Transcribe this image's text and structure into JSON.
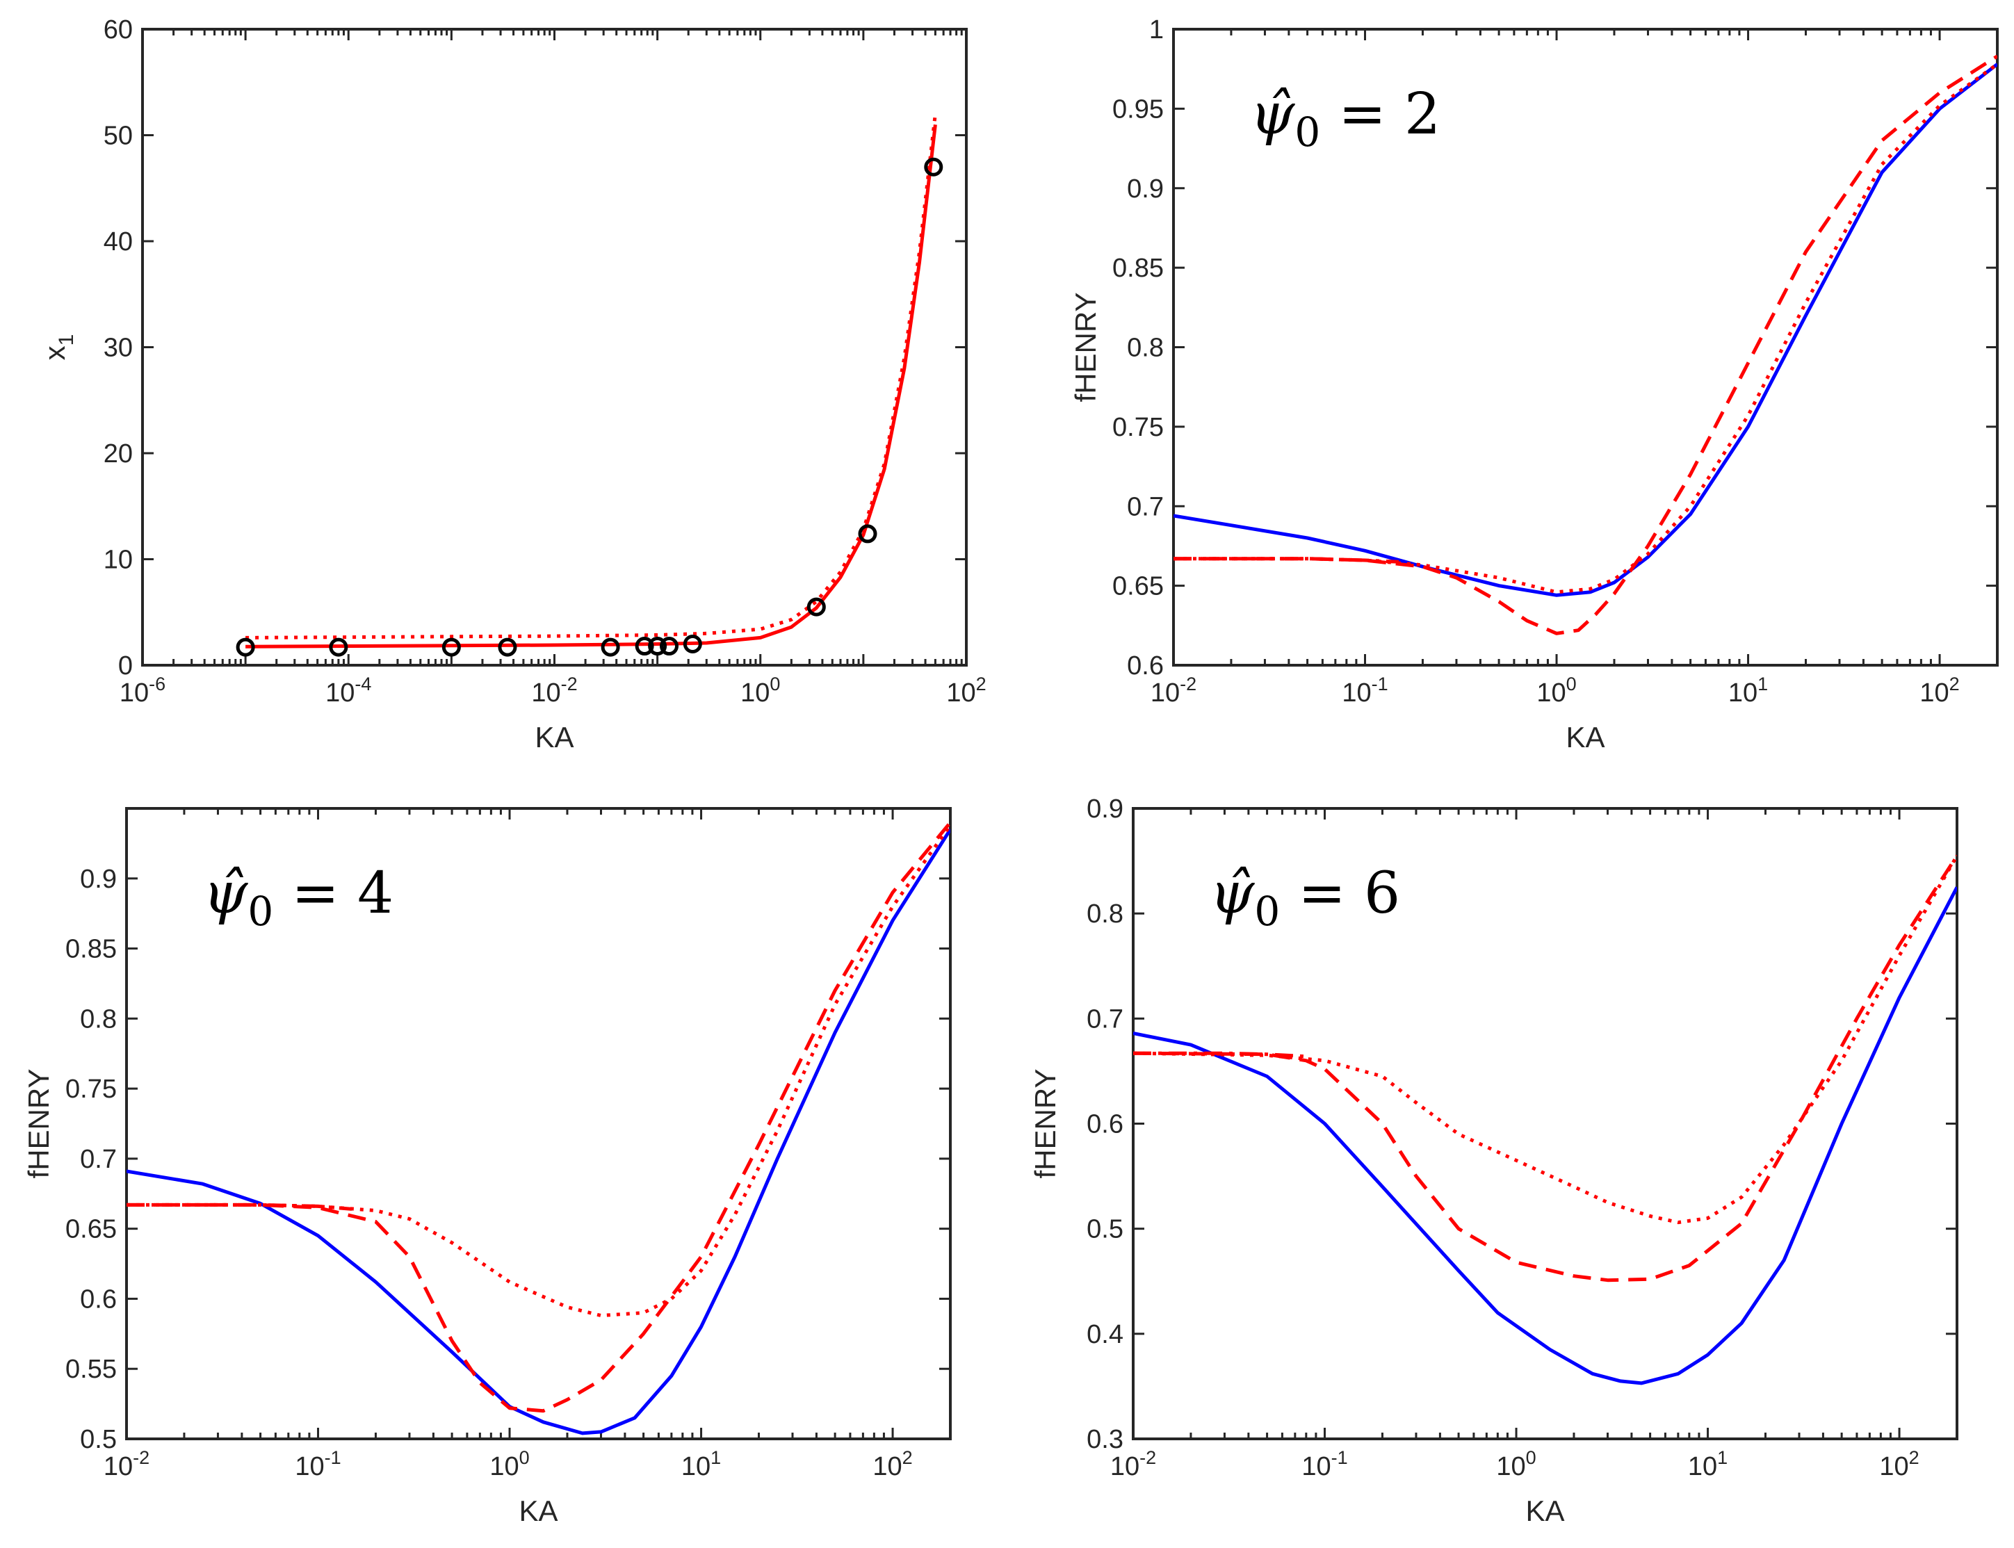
{
  "colors": {
    "blue": "#0000ff",
    "red": "#ff0000",
    "axis": "#262626",
    "marker": "#000000"
  },
  "chart_data": [
    {
      "type": "line",
      "xlabel": "KA",
      "ylabel": "x",
      "ylabel_sub": "1",
      "xscale": "log",
      "xlim": [
        1e-06,
        100
      ],
      "ylim": [
        0,
        60
      ],
      "yticks": [
        0,
        10,
        20,
        30,
        40,
        50,
        60
      ],
      "yticklabels": [
        "0",
        "10",
        "20",
        "30",
        "40",
        "50",
        "60"
      ],
      "xticks": [
        -6,
        -4,
        -2,
        0,
        2
      ],
      "xtick_base": "10",
      "xtick_exps": [
        "-6",
        "-4",
        "-2",
        "0",
        "2"
      ],
      "annotation": null,
      "series": [
        {
          "name": "solid",
          "color": "red",
          "style": "solid",
          "x": [
            1e-05,
            0.0001,
            0.001,
            0.01,
            0.1,
            0.3,
            1,
            2,
            3.5,
            6,
            10,
            16,
            25,
            35,
            50
          ],
          "y": [
            1.75,
            1.8,
            1.85,
            1.9,
            2.0,
            2.1,
            2.6,
            3.6,
            5.4,
            8.3,
            12.3,
            18.5,
            28,
            38,
            51
          ]
        },
        {
          "name": "dotted",
          "color": "red",
          "style": "dotted",
          "x": [
            1e-05,
            0.0001,
            0.001,
            0.01,
            0.1,
            0.3,
            1,
            2,
            3.5,
            6,
            10,
            16,
            25,
            35,
            50
          ],
          "y": [
            2.6,
            2.65,
            2.7,
            2.75,
            2.85,
            3.0,
            3.4,
            4.3,
            6.0,
            8.8,
            12.8,
            19,
            29,
            39,
            52
          ]
        },
        {
          "name": "markers",
          "color": "marker",
          "style": "marker",
          "x": [
            1e-05,
            8e-05,
            0.001,
            0.0035,
            0.035,
            0.075,
            0.1,
            0.13,
            0.22,
            3.5,
            11,
            48
          ],
          "y": [
            1.7,
            1.7,
            1.7,
            1.7,
            1.7,
            1.8,
            1.8,
            1.8,
            2.0,
            5.5,
            12.4,
            47
          ]
        }
      ]
    },
    {
      "type": "line",
      "xlabel": "KA",
      "ylabel": "fHENRY",
      "xscale": "log",
      "xlim": [
        0.01,
        200
      ],
      "ylim": [
        0.6,
        1.0
      ],
      "yticks": [
        0.6,
        0.65,
        0.7,
        0.75,
        0.8,
        0.85,
        0.9,
        0.95,
        1.0
      ],
      "yticklabels": [
        "0.6",
        "0.65",
        "0.7",
        "0.75",
        "0.8",
        "0.85",
        "0.9",
        "0.95",
        "1"
      ],
      "xticks": [
        -2,
        -1,
        0,
        1,
        2
      ],
      "xtick_base": "10",
      "xtick_exps": [
        "-2",
        "-1",
        "0",
        "1",
        "2"
      ],
      "annotation": {
        "prefix": "ψ̂",
        "sub": "0",
        "rest": " = 2"
      },
      "series": [
        {
          "name": "solid",
          "color": "blue",
          "style": "solid",
          "x": [
            0.01,
            0.02,
            0.05,
            0.1,
            0.2,
            0.5,
            1,
            1.5,
            2,
            3,
            5,
            10,
            20,
            50,
            100,
            200
          ],
          "y": [
            0.694,
            0.688,
            0.68,
            0.672,
            0.662,
            0.65,
            0.644,
            0.646,
            0.652,
            0.668,
            0.695,
            0.75,
            0.82,
            0.91,
            0.95,
            0.978
          ]
        },
        {
          "name": "dashed",
          "color": "red",
          "style": "dashed",
          "x": [
            0.01,
            0.05,
            0.1,
            0.2,
            0.3,
            0.5,
            0.7,
            1,
            1.3,
            1.6,
            2,
            3,
            5,
            10,
            20,
            50,
            100,
            200
          ],
          "y": [
            0.667,
            0.667,
            0.666,
            0.662,
            0.655,
            0.64,
            0.628,
            0.62,
            0.622,
            0.632,
            0.645,
            0.675,
            0.72,
            0.79,
            0.86,
            0.93,
            0.96,
            0.983
          ]
        },
        {
          "name": "dotted",
          "color": "red",
          "style": "dotted",
          "x": [
            0.01,
            0.05,
            0.1,
            0.2,
            0.5,
            1,
            1.5,
            2,
            3,
            5,
            10,
            20,
            50,
            100,
            200
          ],
          "y": [
            0.667,
            0.667,
            0.666,
            0.663,
            0.655,
            0.646,
            0.648,
            0.654,
            0.67,
            0.7,
            0.757,
            0.828,
            0.915,
            0.952,
            0.978
          ]
        },
        {
          "name": "dashdot",
          "color": "red",
          "style": "dashdot",
          "x": [
            0.01,
            0.03,
            0.05,
            0.1,
            0.15
          ],
          "y": [
            0.667,
            0.667,
            0.667,
            0.666,
            0.665
          ]
        }
      ]
    },
    {
      "type": "line",
      "xlabel": "KA",
      "ylabel": "fHENRY",
      "xscale": "log",
      "xlim": [
        0.01,
        200
      ],
      "ylim": [
        0.5,
        0.95
      ],
      "yticks": [
        0.5,
        0.55,
        0.6,
        0.65,
        0.7,
        0.75,
        0.8,
        0.85,
        0.9
      ],
      "yticklabels": [
        "0.5",
        "0.55",
        "0.6",
        "0.65",
        "0.7",
        "0.75",
        "0.8",
        "0.85",
        "0.9"
      ],
      "xticks": [
        -2,
        -1,
        0,
        1,
        2
      ],
      "xtick_base": "10",
      "xtick_exps": [
        "-2",
        "-1",
        "0",
        "1",
        "2"
      ],
      "annotation": {
        "prefix": "ψ̂",
        "sub": "0",
        "rest": " = 4"
      },
      "series": [
        {
          "name": "solid",
          "color": "blue",
          "style": "solid",
          "x": [
            0.01,
            0.025,
            0.05,
            0.1,
            0.2,
            0.5,
            1,
            1.5,
            2.4,
            3,
            4.5,
            7,
            10,
            15,
            25,
            50,
            100,
            200
          ],
          "y": [
            0.691,
            0.682,
            0.668,
            0.645,
            0.612,
            0.562,
            0.523,
            0.512,
            0.504,
            0.505,
            0.515,
            0.545,
            0.58,
            0.63,
            0.7,
            0.79,
            0.87,
            0.935
          ]
        },
        {
          "name": "dashed",
          "color": "red",
          "style": "dashed",
          "x": [
            0.01,
            0.05,
            0.1,
            0.2,
            0.3,
            0.5,
            0.7,
            1,
            1.5,
            2,
            3,
            5,
            10,
            20,
            50,
            100,
            200
          ],
          "y": [
            0.667,
            0.667,
            0.665,
            0.655,
            0.63,
            0.57,
            0.54,
            0.522,
            0.52,
            0.528,
            0.542,
            0.575,
            0.63,
            0.71,
            0.82,
            0.89,
            0.94
          ]
        },
        {
          "name": "dotted",
          "color": "red",
          "style": "dotted",
          "x": [
            0.01,
            0.05,
            0.1,
            0.2,
            0.3,
            0.5,
            1,
            2,
            3,
            5,
            7,
            10,
            15,
            25,
            50,
            100,
            200
          ],
          "y": [
            0.667,
            0.667,
            0.666,
            0.663,
            0.657,
            0.64,
            0.612,
            0.594,
            0.588,
            0.59,
            0.6,
            0.62,
            0.66,
            0.72,
            0.81,
            0.88,
            0.938
          ]
        },
        {
          "name": "dashdot",
          "color": "red",
          "style": "dashdot",
          "x": [
            0.01,
            0.03,
            0.05,
            0.1,
            0.15
          ],
          "y": [
            0.667,
            0.667,
            0.667,
            0.666,
            0.664
          ]
        }
      ]
    },
    {
      "type": "line",
      "xlabel": "KA",
      "ylabel": "fHENRY",
      "xscale": "log",
      "xlim": [
        0.01,
        200
      ],
      "ylim": [
        0.3,
        0.9
      ],
      "yticks": [
        0.3,
        0.4,
        0.5,
        0.6,
        0.7,
        0.8,
        0.9
      ],
      "yticklabels": [
        "0.3",
        "0.4",
        "0.5",
        "0.6",
        "0.7",
        "0.8",
        "0.9"
      ],
      "xticks": [
        -2,
        -1,
        0,
        1,
        2
      ],
      "xtick_base": "10",
      "xtick_exps": [
        "-2",
        "-1",
        "0",
        "1",
        "2"
      ],
      "annotation": {
        "prefix": "ψ̂",
        "sub": "0",
        "rest": " = 6"
      },
      "series": [
        {
          "name": "solid",
          "color": "blue",
          "style": "solid",
          "x": [
            0.01,
            0.02,
            0.05,
            0.1,
            0.2,
            0.5,
            0.8,
            1.5,
            2.5,
            3.5,
            4.5,
            7,
            10,
            15,
            25,
            50,
            100,
            200
          ],
          "y": [
            0.686,
            0.675,
            0.645,
            0.6,
            0.54,
            0.46,
            0.42,
            0.385,
            0.362,
            0.355,
            0.353,
            0.362,
            0.38,
            0.41,
            0.47,
            0.6,
            0.72,
            0.825
          ]
        },
        {
          "name": "dashed",
          "color": "red",
          "style": "dashed",
          "x": [
            0.01,
            0.05,
            0.08,
            0.1,
            0.2,
            0.3,
            0.5,
            1,
            2,
            3,
            5,
            8,
            15,
            30,
            60,
            100,
            200
          ],
          "y": [
            0.667,
            0.666,
            0.66,
            0.652,
            0.6,
            0.55,
            0.5,
            0.468,
            0.455,
            0.451,
            0.452,
            0.465,
            0.505,
            0.6,
            0.7,
            0.77,
            0.855
          ]
        },
        {
          "name": "dotted",
          "color": "red",
          "style": "dotted",
          "x": [
            0.01,
            0.05,
            0.1,
            0.2,
            0.3,
            0.5,
            1,
            2,
            3,
            5,
            7,
            10,
            15,
            25,
            50,
            100,
            200
          ],
          "y": [
            0.667,
            0.665,
            0.66,
            0.645,
            0.62,
            0.59,
            0.565,
            0.54,
            0.525,
            0.512,
            0.506,
            0.51,
            0.53,
            0.58,
            0.66,
            0.76,
            0.855
          ]
        },
        {
          "name": "dashdot",
          "color": "red",
          "style": "dashdot",
          "x": [
            0.01,
            0.03,
            0.05,
            0.08
          ],
          "y": [
            0.667,
            0.667,
            0.666,
            0.664
          ]
        }
      ]
    }
  ]
}
